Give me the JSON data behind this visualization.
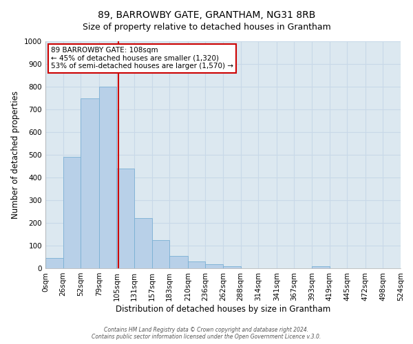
{
  "title": "89, BARROWBY GATE, GRANTHAM, NG31 8RB",
  "subtitle": "Size of property relative to detached houses in Grantham",
  "xlabel": "Distribution of detached houses by size in Grantham",
  "ylabel": "Number of detached properties",
  "bin_edges": [
    0,
    26,
    52,
    79,
    105,
    131,
    157,
    183,
    210,
    236,
    262,
    288,
    314,
    341,
    367,
    393,
    419,
    445,
    472,
    498,
    524
  ],
  "bin_labels": [
    "0sqm",
    "26sqm",
    "52sqm",
    "79sqm",
    "105sqm",
    "131sqm",
    "157sqm",
    "183sqm",
    "210sqm",
    "236sqm",
    "262sqm",
    "288sqm",
    "314sqm",
    "341sqm",
    "367sqm",
    "393sqm",
    "419sqm",
    "445sqm",
    "472sqm",
    "498sqm",
    "524sqm"
  ],
  "bar_heights": [
    45,
    490,
    750,
    800,
    440,
    220,
    125,
    55,
    30,
    18,
    10,
    0,
    0,
    0,
    0,
    8,
    0,
    0,
    0,
    0
  ],
  "bar_facecolor": "#b8d0e8",
  "bar_edgecolor": "#7aafd4",
  "grid_color": "#c8d8e8",
  "bg_color": "#dce8f0",
  "property_line_x": 108,
  "property_line_color": "#cc0000",
  "annotation_title": "89 BARROWBY GATE: 108sqm",
  "annotation_line1": "← 45% of detached houses are smaller (1,320)",
  "annotation_line2": "53% of semi-detached houses are larger (1,570) →",
  "annotation_box_edgecolor": "#cc0000",
  "ylim": [
    0,
    1000
  ],
  "yticks": [
    0,
    100,
    200,
    300,
    400,
    500,
    600,
    700,
    800,
    900,
    1000
  ],
  "footer1": "Contains HM Land Registry data © Crown copyright and database right 2024.",
  "footer2": "Contains public sector information licensed under the Open Government Licence v.3.0."
}
